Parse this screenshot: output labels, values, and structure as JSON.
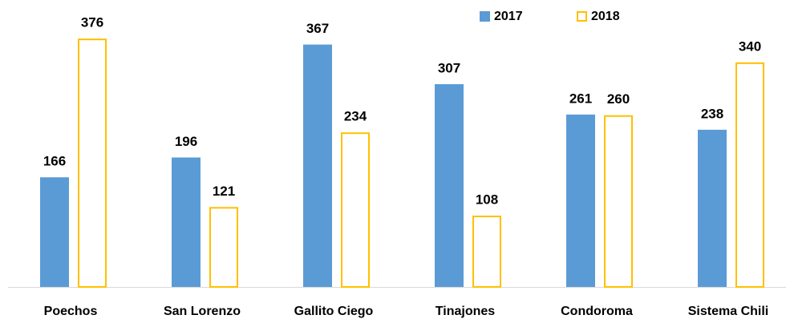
{
  "chart_data": {
    "type": "bar",
    "categories": [
      "Poechos",
      "San Lorenzo",
      "Gallito Ciego",
      "Tinajones",
      "Condoroma",
      "Sistema Chili"
    ],
    "series": [
      {
        "name": "2017",
        "color": "#5b9bd5",
        "values": [
          166,
          196,
          367,
          307,
          261,
          238
        ]
      },
      {
        "name": "2018",
        "color": "#ffc000",
        "values": [
          376,
          121,
          234,
          108,
          260,
          340
        ]
      }
    ],
    "ylim": [
      0,
      400
    ],
    "legend": "top-right"
  }
}
